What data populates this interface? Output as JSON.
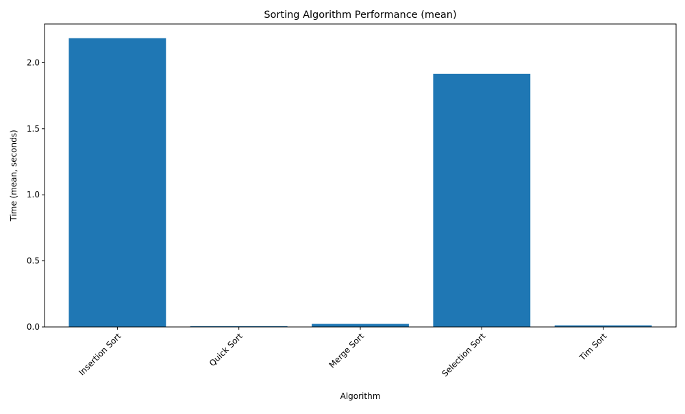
{
  "chart_data": {
    "type": "bar",
    "title": "Sorting Algorithm Performance (mean)",
    "xlabel": "Algorithm",
    "ylabel": "Time (mean, seconds)",
    "categories": [
      "Insertion Sort",
      "Quick Sort",
      "Merge Sort",
      "Selection Sort",
      "Tim Sort"
    ],
    "values": [
      2.185,
      0.006,
      0.023,
      1.915,
      0.012
    ],
    "ylim": [
      0,
      2.2925
    ],
    "yticks": [
      "0.0",
      "0.5",
      "1.0",
      "1.5",
      "2.0"
    ],
    "ytick_values": [
      0.0,
      0.5,
      1.0,
      1.5,
      2.0
    ],
    "grid": false,
    "bar_color": "#1f77b4",
    "xtick_rotation_deg": 45
  }
}
